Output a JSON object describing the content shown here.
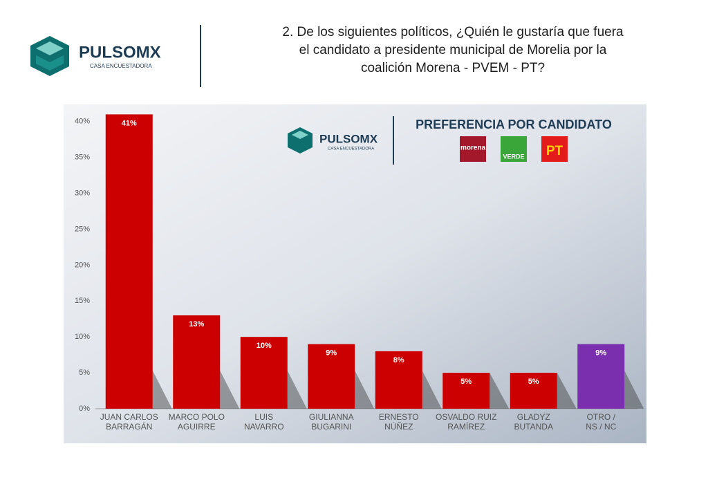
{
  "header": {
    "brand": "PULSOMX",
    "brand_tagline": "CASA ENCUESTADORA",
    "question": "2. De los siguientes políticos, ¿Quién le gustaría que fuera\nel candidato a presidente municipal de Morelia por la\ncoalición Morena - PVEM - PT?"
  },
  "chart_data": {
    "type": "bar",
    "subtitle": "PREFERENCIA POR CANDIDATO",
    "brand": "PULSOMX",
    "brand_tagline": "CASA ENCUESTADORA",
    "party_logos": [
      "morena",
      "VERDE",
      "PT"
    ],
    "categories": [
      "JUAN CARLOS\nBARRAGÁN",
      "MARCO POLO\nAGUIRRE",
      "LUIS\nNAVARRO",
      "GIULIANNA\nBUGARINI",
      "ERNESTO\nNÚÑEZ",
      "OSVALDO RUIZ\nRAMÍREZ",
      "GLADYZ\nBUTANDA",
      "OTRO /\nNS / NC"
    ],
    "values": [
      41,
      13,
      10,
      9,
      8,
      5,
      5,
      9
    ],
    "value_labels": [
      "41%",
      "13%",
      "10%",
      "9%",
      "8%",
      "5%",
      "5%",
      "9%"
    ],
    "colors": [
      "#cc0000",
      "#cc0000",
      "#cc0000",
      "#cc0000",
      "#cc0000",
      "#cc0000",
      "#cc0000",
      "#7a2fae"
    ],
    "ylim": [
      0,
      42
    ],
    "yticks": [
      {
        "value": 0,
        "label": "0%"
      },
      {
        "value": 5,
        "label": "5%"
      },
      {
        "value": 10,
        "label": "10%"
      },
      {
        "value": 15,
        "label": "15%"
      },
      {
        "value": 20,
        "label": "20%"
      },
      {
        "value": 25,
        "label": "25%"
      },
      {
        "value": 30,
        "label": "30%"
      },
      {
        "value": 35,
        "label": "35%"
      },
      {
        "value": 40,
        "label": "40%"
      }
    ]
  }
}
